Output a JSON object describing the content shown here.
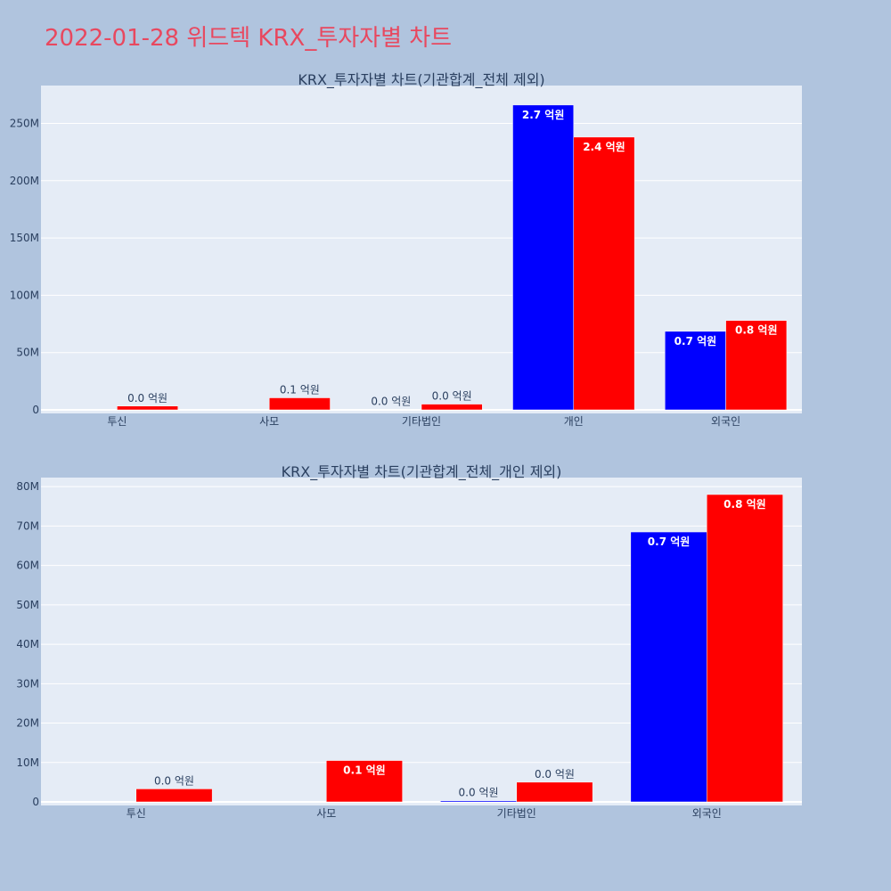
{
  "page": {
    "title": "2022-01-28 위드텍 KRX_투자자별 차트"
  },
  "colors": {
    "page_bg": "#b0c4de",
    "plot_bg": "#e5ecf6",
    "series_a": "#0000ff",
    "series_b": "#ff0000",
    "title": "#e8485f"
  },
  "chart_data": [
    {
      "type": "bar",
      "title": "KRX_투자자별 차트(기관합계_전체 제외)",
      "categories": [
        "투신",
        "사모",
        "기타법인",
        "개인",
        "외국인"
      ],
      "ylim": [
        0,
        283000000
      ],
      "yticks": [
        0,
        50000000,
        100000000,
        150000000,
        200000000,
        250000000
      ],
      "ytick_labels": [
        "0",
        "50M",
        "100M",
        "150M",
        "200M",
        "250M"
      ],
      "grid": true,
      "series": [
        {
          "values": [
            0,
            0,
            300000,
            266000000,
            68500000
          ],
          "labels": [
            "",
            "",
            "0.0 억원",
            "2.7 억원",
            "0.7 억원"
          ]
        },
        {
          "values": [
            3300000,
            10500000,
            5000000,
            238000000,
            78000000
          ],
          "labels": [
            "0.0 억원",
            "0.1 억원",
            "0.0 억원",
            "2.4 억원",
            "0.8 억원"
          ]
        }
      ]
    },
    {
      "type": "bar",
      "title": "KRX_투자자별 차트(기관합계_전체_개인 제외)",
      "categories": [
        "투신",
        "사모",
        "기타법인",
        "외국인"
      ],
      "ylim": [
        0,
        82300000
      ],
      "yticks": [
        0,
        10000000,
        20000000,
        30000000,
        40000000,
        50000000,
        60000000,
        70000000,
        80000000
      ],
      "ytick_labels": [
        "0",
        "10M",
        "20M",
        "30M",
        "40M",
        "50M",
        "60M",
        "70M",
        "80M"
      ],
      "grid": true,
      "series": [
        {
          "values": [
            0,
            0,
            300000,
            68500000
          ],
          "labels": [
            "",
            "",
            "0.0 억원",
            "0.7 억원"
          ]
        },
        {
          "values": [
            3300000,
            10500000,
            5000000,
            78000000
          ],
          "labels": [
            "0.0 억원",
            "0.1 억원",
            "0.0 억원",
            "0.8 억원"
          ]
        }
      ]
    }
  ]
}
